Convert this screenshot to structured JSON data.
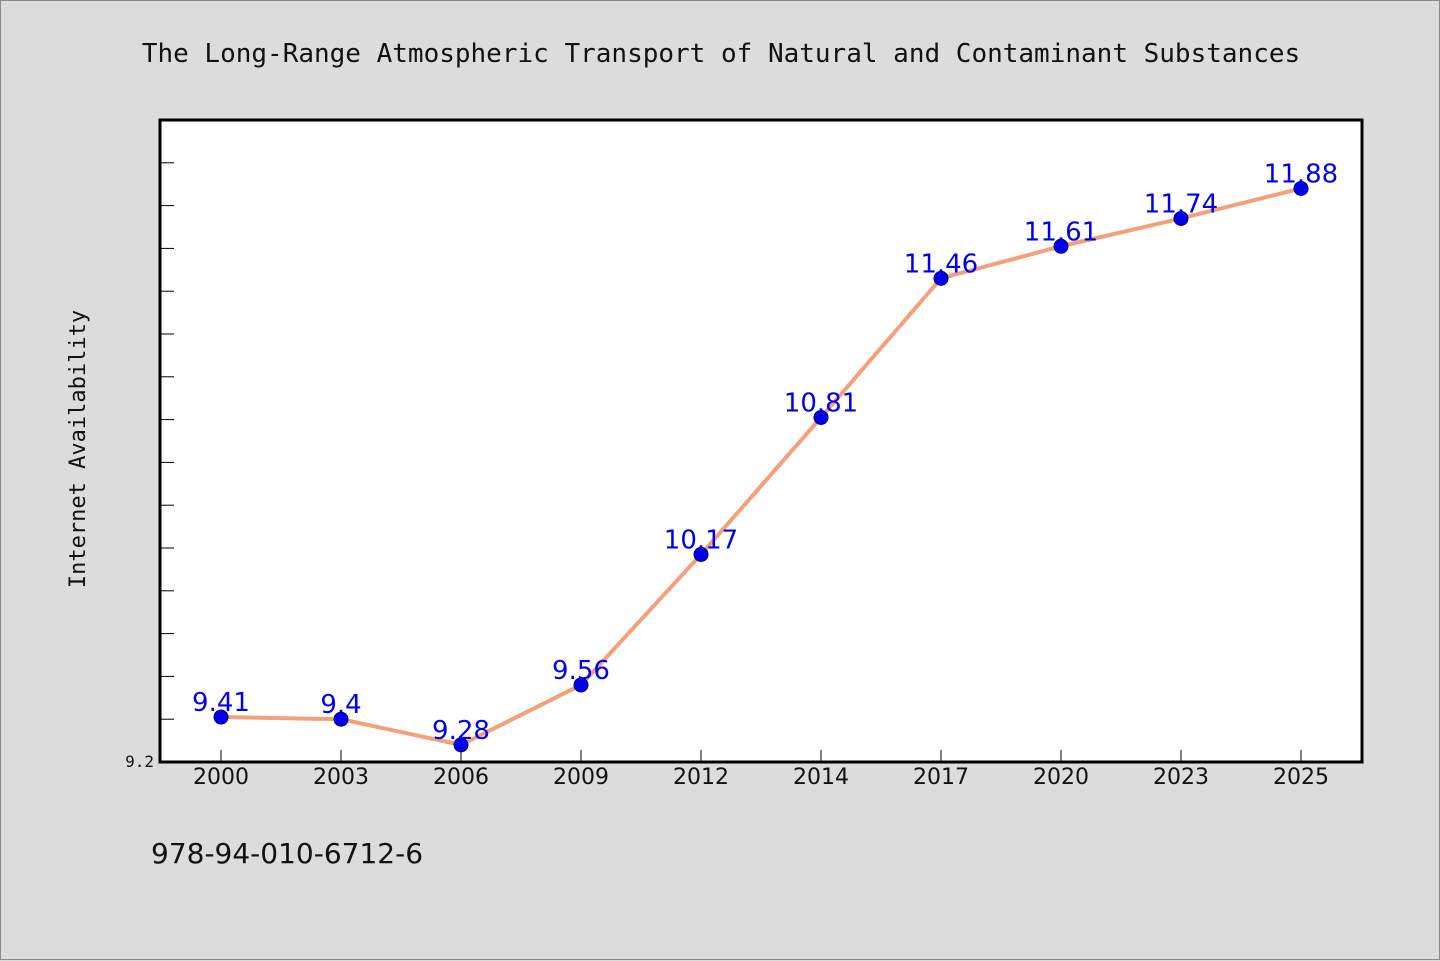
{
  "chart_data": {
    "type": "line",
    "title": "The Long-Range Atmospheric Transport of Natural and Contaminant Substances",
    "xlabel": "",
    "ylabel": "Internet Availability",
    "categories": [
      "2000",
      "2003",
      "2006",
      "2009",
      "2012",
      "2014",
      "2017",
      "2020",
      "2023",
      "2025"
    ],
    "series": [
      {
        "values": [
          9.41,
          9.4,
          9.28,
          9.56,
          10.17,
          10.81,
          11.46,
          11.61,
          11.74,
          11.88
        ],
        "labels": [
          "9.41",
          "9.4",
          "9.28",
          "9.56",
          "10.17",
          "10.81",
          "11.46",
          "11.61",
          "11.74",
          "11.88"
        ],
        "line_color": "#f4a07a",
        "marker_color": "#0000ee"
      }
    ],
    "ytick_labels": [
      "9.2"
    ],
    "ylim": [
      9.2,
      12.2
    ],
    "grid": false,
    "legend": "none"
  },
  "footer": {
    "isbn": "978-94-010-6712-6"
  }
}
